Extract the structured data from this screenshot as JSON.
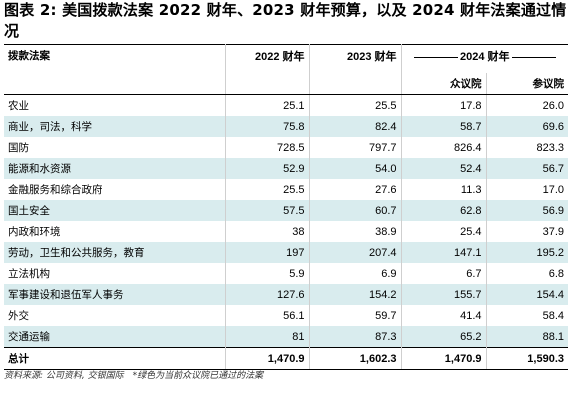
{
  "title": "图表 2: 美国拨款法案 2022 财年、2023 财年预算，以及 2024 财年法案通过情况",
  "table": {
    "headers": {
      "category": "拨款法案",
      "fy2022": "2022 财年",
      "fy2023": "2023 财年",
      "fy2024": "2024 财年",
      "house": "众议院",
      "senate": "参议院"
    },
    "rows": [
      {
        "name": "农业",
        "fy2022": "25.1",
        "fy2023": "25.5",
        "house": "17.8",
        "senate": "26.0"
      },
      {
        "name": "商业，司法，科学",
        "fy2022": "75.8",
        "fy2023": "82.4",
        "house": "58.7",
        "senate": "69.6"
      },
      {
        "name": "国防",
        "fy2022": "728.5",
        "fy2023": "797.7",
        "house": "826.4",
        "senate": "823.3"
      },
      {
        "name": "能源和水资源",
        "fy2022": "52.9",
        "fy2023": "54.0",
        "house": "52.4",
        "senate": "56.7"
      },
      {
        "name": "金融服务和综合政府",
        "fy2022": "25.5",
        "fy2023": "27.6",
        "house": "11.3",
        "senate": "17.0"
      },
      {
        "name": "国土安全",
        "fy2022": "57.5",
        "fy2023": "60.7",
        "house": "62.8",
        "senate": "56.9"
      },
      {
        "name": "内政和环境",
        "fy2022": "38",
        "fy2023": "38.9",
        "house": "25.4",
        "senate": "37.9"
      },
      {
        "name": "劳动，卫生和公共服务，教育",
        "fy2022": "197",
        "fy2023": "207.4",
        "house": "147.1",
        "senate": "195.2"
      },
      {
        "name": "立法机构",
        "fy2022": "5.9",
        "fy2023": "6.9",
        "house": "6.7",
        "senate": "6.8"
      },
      {
        "name": "军事建设和退伍军人事务",
        "fy2022": "127.6",
        "fy2023": "154.2",
        "house": "155.7",
        "senate": "154.4"
      },
      {
        "name": "外交",
        "fy2022": "56.1",
        "fy2023": "59.7",
        "house": "41.4",
        "senate": "58.4"
      },
      {
        "name": "交通运输",
        "fy2022": "81",
        "fy2023": "87.3",
        "house": "65.2",
        "senate": "88.1"
      }
    ],
    "total": {
      "name": "总计",
      "fy2022": "1,470.9",
      "fy2023": "1,602.3",
      "house": "1,470.9",
      "senate": "1,590.3"
    }
  },
  "shade_color": "#d9ecee",
  "highlighted_rows": [
    1,
    3,
    5,
    7,
    9,
    11
  ],
  "footnote": "资料来源: 公司资料, 交银国际　*绿色为当前众议院已通过的法案"
}
